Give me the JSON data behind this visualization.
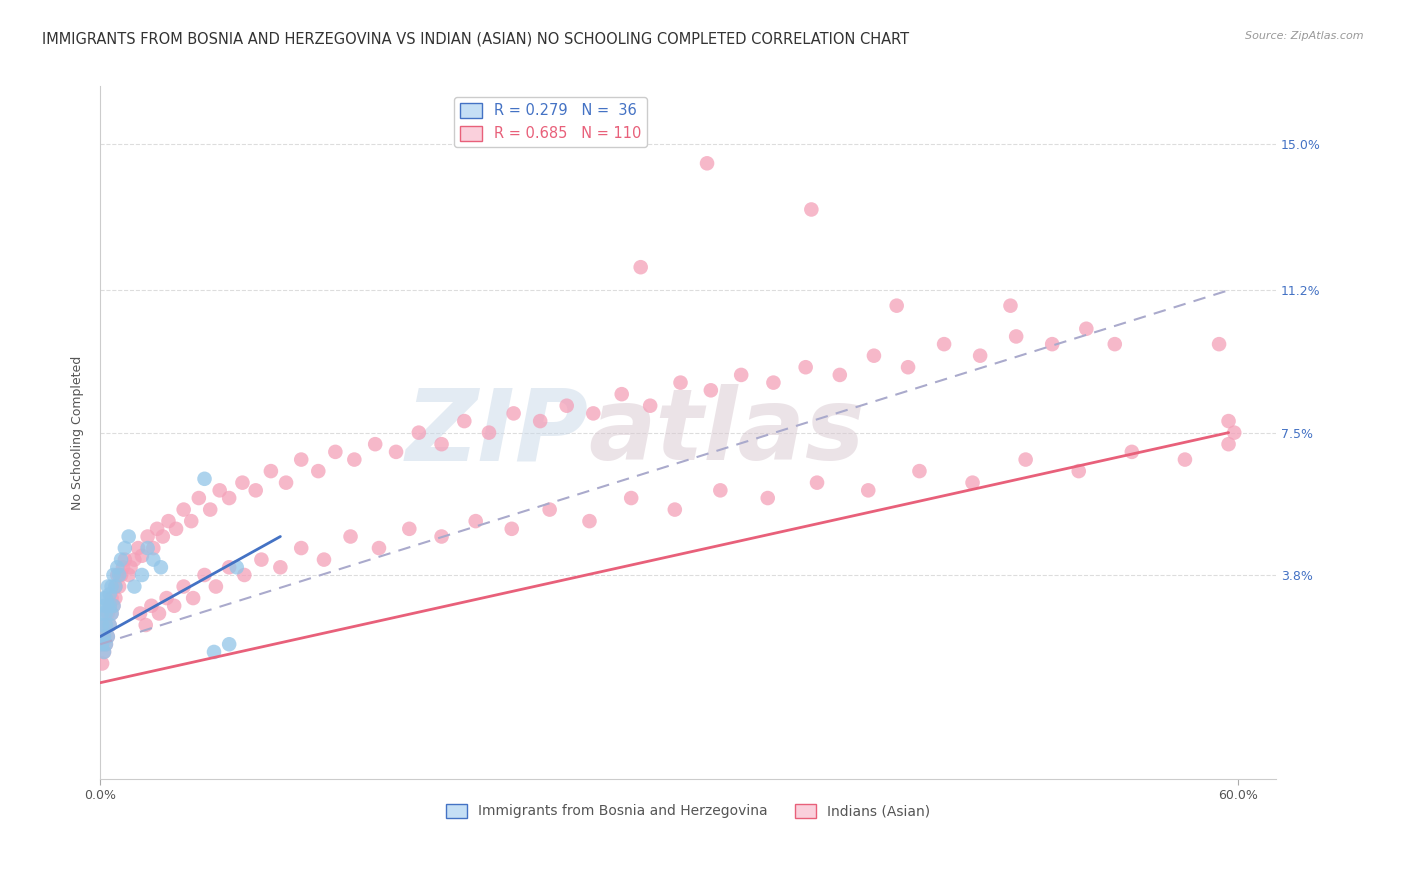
{
  "title": "IMMIGRANTS FROM BOSNIA AND HERZEGOVINA VS INDIAN (ASIAN) NO SCHOOLING COMPLETED CORRELATION CHART",
  "source": "Source: ZipAtlas.com",
  "ylabel": "No Schooling Completed",
  "xlim": [
    0.0,
    0.62
  ],
  "ylim": [
    -0.015,
    0.165
  ],
  "watermark_zip": "ZIP",
  "watermark_atlas": "atlas",
  "series1_label": "Immigrants from Bosnia and Herzegovina",
  "series1_color": "#92c5e8",
  "series2_label": "Indians (Asian)",
  "series2_color": "#f4a0b8",
  "background_color": "#ffffff",
  "grid_color": "#dddddd",
  "title_fontsize": 10.5,
  "axis_label_fontsize": 9,
  "tick_fontsize": 9,
  "right_tick_color": "#4472c4",
  "bosnia_line_color": "#4472c4",
  "indian_line_color": "#e8607a",
  "dashed_line_color": "#aaaacc",
  "legend_r1": "R = 0.279",
  "legend_n1": "N =  36",
  "legend_r2": "R = 0.685",
  "legend_n2": "N = 110",
  "bosnia_x": [
    0.001,
    0.001,
    0.001,
    0.002,
    0.002,
    0.002,
    0.002,
    0.003,
    0.003,
    0.003,
    0.003,
    0.004,
    0.004,
    0.004,
    0.005,
    0.005,
    0.005,
    0.006,
    0.006,
    0.007,
    0.007,
    0.008,
    0.009,
    0.01,
    0.011,
    0.013,
    0.015,
    0.018,
    0.022,
    0.025,
    0.028,
    0.032,
    0.055,
    0.06,
    0.068,
    0.072
  ],
  "bosnia_y": [
    0.02,
    0.025,
    0.028,
    0.018,
    0.022,
    0.03,
    0.032,
    0.02,
    0.025,
    0.028,
    0.032,
    0.022,
    0.03,
    0.035,
    0.025,
    0.03,
    0.033,
    0.028,
    0.035,
    0.03,
    0.038,
    0.035,
    0.04,
    0.038,
    0.042,
    0.045,
    0.048,
    0.035,
    0.038,
    0.045,
    0.042,
    0.04,
    0.063,
    0.018,
    0.02,
    0.04
  ],
  "indian_x": [
    0.001,
    0.001,
    0.002,
    0.002,
    0.003,
    0.003,
    0.004,
    0.004,
    0.005,
    0.005,
    0.006,
    0.006,
    0.007,
    0.008,
    0.008,
    0.009,
    0.01,
    0.011,
    0.012,
    0.013,
    0.015,
    0.016,
    0.018,
    0.02,
    0.022,
    0.025,
    0.028,
    0.03,
    0.033,
    0.036,
    0.04,
    0.044,
    0.048,
    0.052,
    0.058,
    0.063,
    0.068,
    0.075,
    0.082,
    0.09,
    0.098,
    0.106,
    0.115,
    0.124,
    0.134,
    0.145,
    0.156,
    0.168,
    0.18,
    0.192,
    0.205,
    0.218,
    0.232,
    0.246,
    0.26,
    0.275,
    0.29,
    0.306,
    0.322,
    0.338,
    0.355,
    0.372,
    0.39,
    0.408,
    0.426,
    0.445,
    0.464,
    0.483,
    0.502,
    0.52,
    0.021,
    0.024,
    0.027,
    0.031,
    0.035,
    0.039,
    0.044,
    0.049,
    0.055,
    0.061,
    0.068,
    0.076,
    0.085,
    0.095,
    0.106,
    0.118,
    0.132,
    0.147,
    0.163,
    0.18,
    0.198,
    0.217,
    0.237,
    0.258,
    0.28,
    0.303,
    0.327,
    0.352,
    0.378,
    0.405,
    0.432,
    0.46,
    0.488,
    0.516,
    0.544,
    0.572,
    0.595,
    0.598,
    0.595,
    0.59
  ],
  "indian_y": [
    0.015,
    0.02,
    0.018,
    0.022,
    0.02,
    0.025,
    0.022,
    0.028,
    0.025,
    0.03,
    0.028,
    0.032,
    0.03,
    0.035,
    0.032,
    0.038,
    0.035,
    0.038,
    0.04,
    0.042,
    0.038,
    0.04,
    0.042,
    0.045,
    0.043,
    0.048,
    0.045,
    0.05,
    0.048,
    0.052,
    0.05,
    0.055,
    0.052,
    0.058,
    0.055,
    0.06,
    0.058,
    0.062,
    0.06,
    0.065,
    0.062,
    0.068,
    0.065,
    0.07,
    0.068,
    0.072,
    0.07,
    0.075,
    0.072,
    0.078,
    0.075,
    0.08,
    0.078,
    0.082,
    0.08,
    0.085,
    0.082,
    0.088,
    0.086,
    0.09,
    0.088,
    0.092,
    0.09,
    0.095,
    0.092,
    0.098,
    0.095,
    0.1,
    0.098,
    0.102,
    0.028,
    0.025,
    0.03,
    0.028,
    0.032,
    0.03,
    0.035,
    0.032,
    0.038,
    0.035,
    0.04,
    0.038,
    0.042,
    0.04,
    0.045,
    0.042,
    0.048,
    0.045,
    0.05,
    0.048,
    0.052,
    0.05,
    0.055,
    0.052,
    0.058,
    0.055,
    0.06,
    0.058,
    0.062,
    0.06,
    0.065,
    0.062,
    0.068,
    0.065,
    0.07,
    0.068,
    0.072,
    0.075,
    0.078,
    0.098
  ],
  "indian_outlier_x": [
    0.32,
    0.375,
    0.285,
    0.42,
    0.48,
    0.535
  ],
  "indian_outlier_y": [
    0.145,
    0.133,
    0.118,
    0.108,
    0.108,
    0.098
  ],
  "bosnia_line_x0": 0.0,
  "bosnia_line_x1": 0.095,
  "bosnia_line_y0": 0.022,
  "bosnia_line_y1": 0.048,
  "indian_line_x0": 0.0,
  "indian_line_x1": 0.595,
  "indian_line_y0": 0.01,
  "indian_line_y1": 0.075,
  "dashed_line_x0": 0.0,
  "dashed_line_x1": 0.595,
  "dashed_line_y0": 0.02,
  "dashed_line_y1": 0.112
}
